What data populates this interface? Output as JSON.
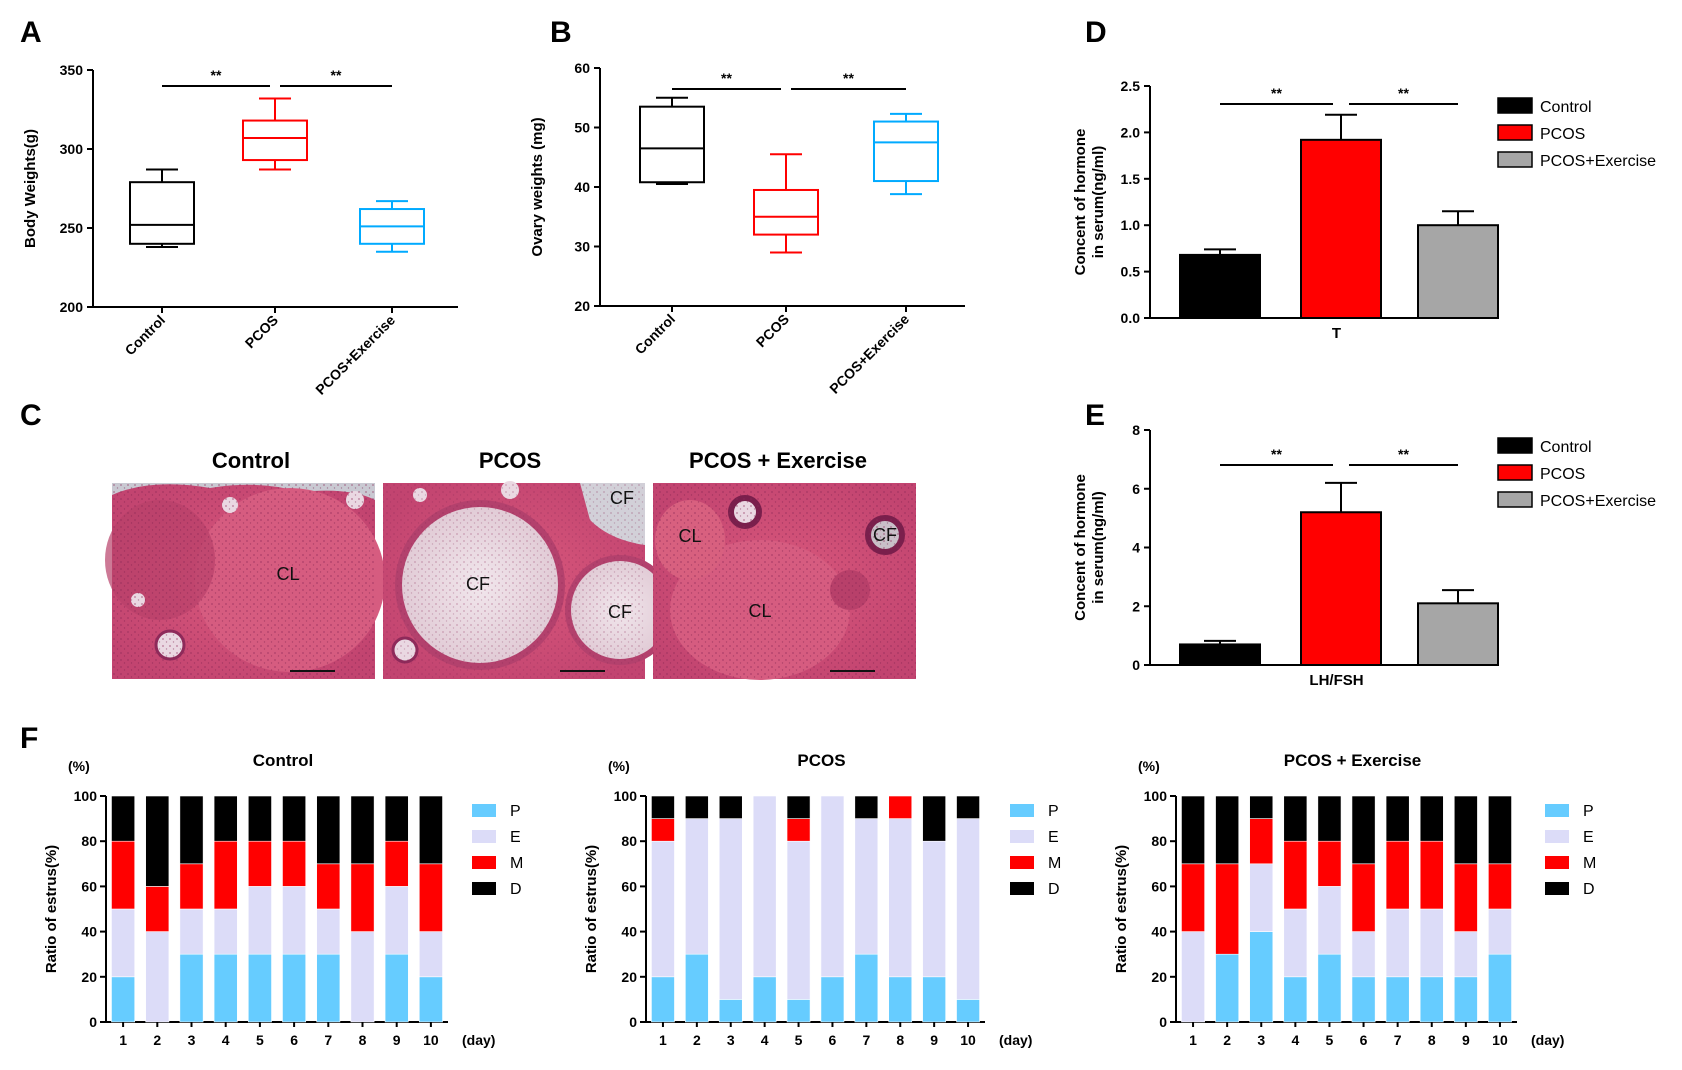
{
  "panel_labels": {
    "A": "A",
    "B": "B",
    "C": "C",
    "D": "D",
    "E": "E",
    "F": "F"
  },
  "colors": {
    "control": "#000000",
    "pcos": "#ff0000",
    "exercise": "#00aaff",
    "grey": "#a6a6a6",
    "P": "#66ccff",
    "E": "#dcdcf8",
    "M": "#ff0000",
    "D": "#000000"
  },
  "sig": "**",
  "chart_data": [
    {
      "id": "A",
      "type": "box",
      "ylabel": "Body Weights(g)",
      "ylim": [
        200,
        350
      ],
      "yticks": [
        "200",
        "250",
        "300",
        "350"
      ],
      "categories": [
        "Control",
        "PCOS",
        "PCOS+Exercise"
      ],
      "boxes": [
        {
          "min": 238,
          "q1": 240,
          "median": 252,
          "q3": 279,
          "max": 287
        },
        {
          "min": 287,
          "q1": 293,
          "median": 307,
          "q3": 318,
          "max": 332
        },
        {
          "min": 235,
          "q1": 240,
          "median": 251,
          "q3": 262,
          "max": 267
        }
      ]
    },
    {
      "id": "B",
      "type": "box",
      "ylabel": "Ovary weights (mg)",
      "ylim": [
        20,
        60
      ],
      "yticks": [
        "20",
        "30",
        "40",
        "50",
        "60"
      ],
      "categories": [
        "Control",
        "PCOS",
        "PCOS+Exercise"
      ],
      "boxes": [
        {
          "min": 40.5,
          "q1": 40.8,
          "median": 46.5,
          "q3": 53.5,
          "max": 55
        },
        {
          "min": 29,
          "q1": 32,
          "median": 35,
          "q3": 39.5,
          "max": 45.5
        },
        {
          "min": 38.8,
          "q1": 41,
          "median": 47.5,
          "q3": 51,
          "max": 52.3
        }
      ]
    },
    {
      "id": "D",
      "type": "bar",
      "ylabel": "Concent of hormone",
      "ylabel2": "in serum(ng/ml)",
      "xlabel": "T",
      "ylim": [
        0,
        2.5
      ],
      "yticks": [
        "0.0",
        "0.5",
        "1.0",
        "1.5",
        "2.0",
        "2.5"
      ],
      "series": [
        {
          "name": "Control",
          "value": 0.68,
          "err": 0.06
        },
        {
          "name": "PCOS",
          "value": 1.92,
          "err": 0.27
        },
        {
          "name": "PCOS+Exercise",
          "value": 1.0,
          "err": 0.15
        }
      ]
    },
    {
      "id": "E",
      "type": "bar",
      "ylabel": "Concent of hormone",
      "ylabel2": "in serum(ng/ml)",
      "xlabel": "LH/FSH",
      "ylim": [
        0,
        8
      ],
      "yticks": [
        "0",
        "2",
        "4",
        "6",
        "8"
      ],
      "series": [
        {
          "name": "Control",
          "value": 0.7,
          "err": 0.12
        },
        {
          "name": "PCOS",
          "value": 5.2,
          "err": 1.0
        },
        {
          "name": "PCOS+Exercise",
          "value": 2.1,
          "err": 0.45
        }
      ]
    },
    {
      "id": "F1",
      "type": "stacked_bar",
      "title": "Control",
      "unit": "(%)",
      "xunit": "(day)",
      "ylabel": "Ratio of estrus(%)",
      "yticks": [
        "0",
        "20",
        "40",
        "60",
        "80",
        "100"
      ],
      "categories": [
        "1",
        "2",
        "3",
        "4",
        "5",
        "6",
        "7",
        "8",
        "9",
        "10"
      ],
      "legend": [
        "P",
        "E",
        "M",
        "D"
      ],
      "series": [
        {
          "name": "P",
          "values": [
            20,
            0,
            30,
            30,
            30,
            30,
            30,
            0,
            30,
            20
          ]
        },
        {
          "name": "E",
          "values": [
            30,
            40,
            20,
            20,
            30,
            30,
            20,
            40,
            30,
            20
          ]
        },
        {
          "name": "M",
          "values": [
            30,
            20,
            20,
            30,
            20,
            20,
            20,
            30,
            20,
            30
          ]
        },
        {
          "name": "D",
          "values": [
            20,
            40,
            30,
            20,
            20,
            20,
            30,
            30,
            20,
            30
          ]
        }
      ]
    },
    {
      "id": "F2",
      "type": "stacked_bar",
      "title": "PCOS",
      "unit": "(%)",
      "xunit": "(day)",
      "ylabel": "Ratio of estrus(%)",
      "yticks": [
        "0",
        "20",
        "40",
        "60",
        "80",
        "100"
      ],
      "categories": [
        "1",
        "2",
        "3",
        "4",
        "5",
        "6",
        "7",
        "8",
        "9",
        "10"
      ],
      "legend": [
        "P",
        "E",
        "M",
        "D"
      ],
      "series": [
        {
          "name": "P",
          "values": [
            20,
            30,
            10,
            20,
            10,
            20,
            30,
            20,
            20,
            10
          ]
        },
        {
          "name": "E",
          "values": [
            60,
            60,
            80,
            80,
            70,
            80,
            60,
            70,
            60,
            80
          ]
        },
        {
          "name": "M",
          "values": [
            10,
            0,
            0,
            0,
            10,
            0,
            0,
            10,
            0,
            0
          ]
        },
        {
          "name": "D",
          "values": [
            10,
            10,
            10,
            0,
            10,
            0,
            10,
            0,
            20,
            10
          ]
        }
      ]
    },
    {
      "id": "F3",
      "type": "stacked_bar",
      "title": "PCOS + Exercise",
      "unit": "(%)",
      "xunit": "(day)",
      "ylabel": "Ratio of estrus(%)",
      "yticks": [
        "0",
        "20",
        "40",
        "60",
        "80",
        "100"
      ],
      "categories": [
        "1",
        "2",
        "3",
        "4",
        "5",
        "6",
        "7",
        "8",
        "9",
        "10"
      ],
      "legend": [
        "P",
        "E",
        "M",
        "D"
      ],
      "series": [
        {
          "name": "P",
          "values": [
            0,
            30,
            40,
            20,
            30,
            20,
            20,
            20,
            20,
            30
          ]
        },
        {
          "name": "E",
          "values": [
            40,
            0,
            30,
            30,
            30,
            20,
            30,
            30,
            20,
            20
          ]
        },
        {
          "name": "M",
          "values": [
            30,
            40,
            20,
            30,
            20,
            30,
            30,
            30,
            30,
            20
          ]
        },
        {
          "name": "D",
          "values": [
            30,
            30,
            10,
            20,
            20,
            30,
            20,
            20,
            30,
            30
          ]
        }
      ]
    }
  ],
  "histology": {
    "titles": [
      "Control",
      "PCOS",
      "PCOS + Exercise"
    ],
    "labels": {
      "control": [
        "CL"
      ],
      "pcos": [
        "CF",
        "CF",
        "CF"
      ],
      "exercise": [
        "CL",
        "CF",
        "CL"
      ]
    }
  }
}
